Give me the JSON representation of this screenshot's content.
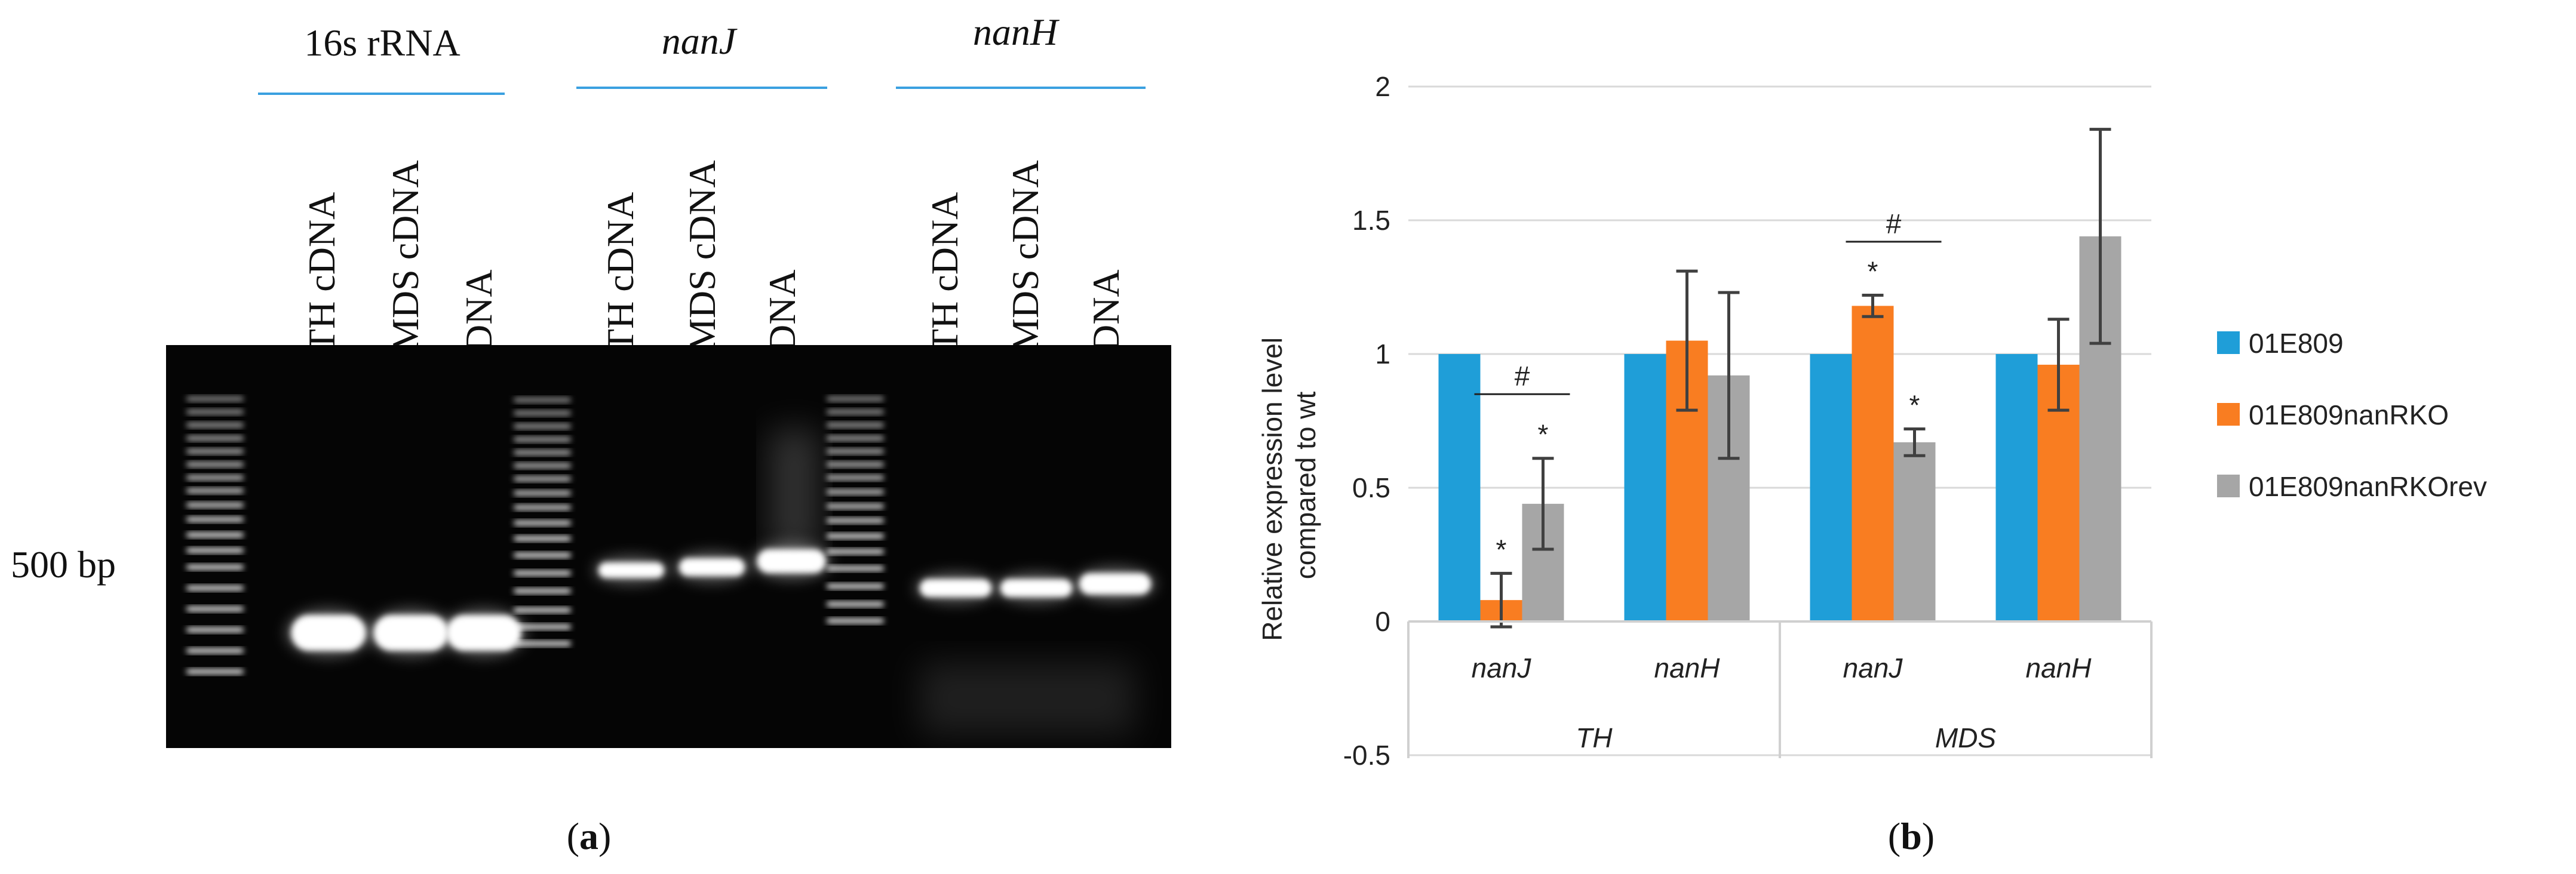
{
  "panel_a": {
    "label": "a",
    "size_marker": "500 bp",
    "groups": [
      {
        "name": "16s rRNA",
        "italic": false,
        "lanes": [
          "TH cDNA",
          "MDS cDNA",
          "DNA"
        ]
      },
      {
        "name": "nanJ",
        "italic": true,
        "lanes": [
          "TH cDNA",
          "MDS cDNA",
          "DNA"
        ]
      },
      {
        "name": "nanH",
        "italic": true,
        "lanes": [
          "TH cDNA",
          "MDS cDNA",
          "DNA"
        ]
      }
    ],
    "colors": {
      "gel_background": "#050505",
      "band": "#ffffff",
      "group_rule": "#3aa0e0"
    }
  },
  "panel_b": {
    "label": "b"
  },
  "chart_data": {
    "type": "bar",
    "ylabel": "Relative expression level compared to wt",
    "ylim": [
      -0.5,
      2
    ],
    "yticks": [
      "-0.5",
      "0",
      "0.5",
      "1",
      "1.5",
      "2"
    ],
    "ytick_values": [
      -0.5,
      0,
      0.5,
      1,
      1.5,
      2
    ],
    "grid": true,
    "legend_position": "right",
    "categories": [
      "nanJ",
      "nanH",
      "nanJ",
      "nanH"
    ],
    "groups": [
      "TH",
      "MDS"
    ],
    "series": [
      {
        "name": "01E809",
        "color": "#1f9ed8",
        "values": [
          1,
          1,
          1,
          1
        ],
        "errors": [
          0,
          0,
          0,
          0
        ]
      },
      {
        "name": "01E809nanRKO",
        "color": "#f97d21",
        "values": [
          0.08,
          1.05,
          1.18,
          0.96
        ],
        "errors": [
          0.1,
          0.26,
          0.04,
          0.17
        ]
      },
      {
        "name": "01E809nanRKOrev",
        "color": "#a6a6a6",
        "values": [
          0.44,
          0.92,
          0.67,
          1.44
        ],
        "errors": [
          0.17,
          0.31,
          0.05,
          0.4
        ]
      }
    ],
    "annotations": {
      "star": "*",
      "hash": "#",
      "star_marks": [
        {
          "category": 0,
          "series": 1
        },
        {
          "category": 0,
          "series": 2
        },
        {
          "category": 2,
          "series": 1
        },
        {
          "category": 2,
          "series": 2
        }
      ],
      "hash_marks": [
        {
          "category": 0,
          "y": 0.85
        },
        {
          "category": 2,
          "y": 1.42
        }
      ]
    }
  }
}
